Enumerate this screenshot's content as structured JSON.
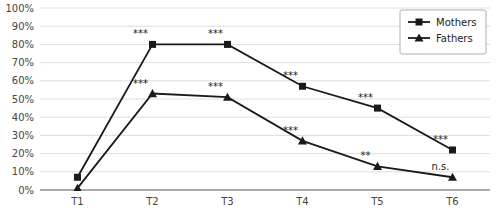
{
  "chart_data": {
    "type": "line",
    "categories": [
      "T1",
      "T2",
      "T3",
      "T4",
      "T5",
      "T6"
    ],
    "series": [
      {
        "name": "Mothers",
        "color": "#1a1a1a",
        "marker": "square",
        "values": [
          7,
          80,
          80,
          57,
          45,
          22
        ],
        "annotations": [
          null,
          "***",
          "***",
          "***",
          "***",
          "***"
        ]
      },
      {
        "name": "Fathers",
        "color": "#1a1a1a",
        "marker": "triangle",
        "values": [
          1,
          53,
          51,
          27,
          13,
          7
        ],
        "annotations": [
          null,
          "***",
          "***",
          "***",
          "**",
          "n.s."
        ]
      }
    ],
    "ylim": [
      0,
      100
    ],
    "yticks": [
      {
        "value": 0,
        "label": "0%"
      },
      {
        "value": 10,
        "label": "10%"
      },
      {
        "value": 20,
        "label": "20%"
      },
      {
        "value": 30,
        "label": "30%"
      },
      {
        "value": 40,
        "label": "40%"
      },
      {
        "value": 50,
        "label": "50%"
      },
      {
        "value": 60,
        "label": "60%"
      },
      {
        "value": 70,
        "label": "70%"
      },
      {
        "value": 80,
        "label": "80%"
      },
      {
        "value": 90,
        "label": "90%"
      },
      {
        "value": 100,
        "label": "100%"
      }
    ],
    "grid": true,
    "legend": "upper right"
  }
}
